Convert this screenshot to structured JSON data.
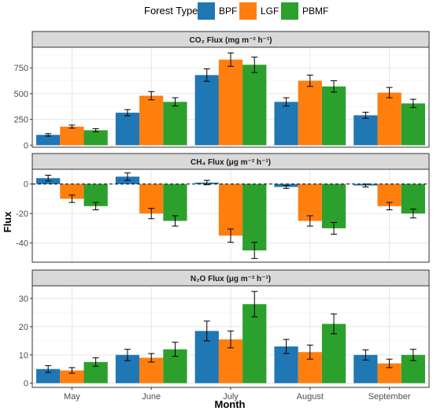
{
  "legend": {
    "title": "Forest Type",
    "items": [
      {
        "label": "BPF",
        "color": "#1f77b4"
      },
      {
        "label": "LGF",
        "color": "#ff7f0e"
      },
      {
        "label": "PBMF",
        "color": "#2ca02c"
      }
    ]
  },
  "axis": {
    "xlabel": "Month",
    "ylabel": "Flux"
  },
  "chart_data": {
    "type": "bar",
    "categories": [
      "May",
      "June",
      "July",
      "August",
      "September"
    ],
    "legend_position": "top",
    "grid": true,
    "error_bars": true,
    "panels": [
      {
        "title": "CO₂ Flux (mg m⁻² h⁻¹)",
        "ylim": [
          -20,
          950
        ],
        "yticks": [
          0,
          250,
          500,
          750
        ],
        "series": [
          {
            "name": "BPF",
            "values": [
              100,
              315,
              680,
              420,
              290
            ],
            "errors": [
              12,
              30,
              60,
              40,
              30
            ]
          },
          {
            "name": "LGF",
            "values": [
              180,
              480,
              830,
              625,
              510
            ],
            "errors": [
              15,
              40,
              65,
              55,
              50
            ]
          },
          {
            "name": "PBMF",
            "values": [
              145,
              420,
              780,
              570,
              405
            ],
            "errors": [
              15,
              40,
              75,
              55,
              40
            ]
          }
        ]
      },
      {
        "title": "CH₄ Flux (μg m⁻² h⁻¹)",
        "ylim": [
          -53,
          10
        ],
        "yticks": [
          -40,
          -20,
          0
        ],
        "reference_line": 0,
        "series": [
          {
            "name": "BPF",
            "values": [
              4,
              5,
              1,
              -2,
              -1
            ],
            "errors": [
              2,
              2.5,
              1.5,
              1,
              1
            ]
          },
          {
            "name": "LGF",
            "values": [
              -10,
              -20,
              -35,
              -25,
              -15
            ],
            "errors": [
              2.5,
              3.5,
              4.5,
              3.5,
              2.5
            ]
          },
          {
            "name": "PBMF",
            "values": [
              -15,
              -25,
              -45,
              -30,
              -20
            ],
            "errors": [
              2.5,
              3.5,
              5.5,
              4,
              3
            ]
          }
        ]
      },
      {
        "title": "N₂O Flux (μg m⁻² h⁻¹)",
        "ylim": [
          -1.5,
          34.5
        ],
        "yticks": [
          0,
          10,
          20,
          30
        ],
        "series": [
          {
            "name": "BPF",
            "values": [
              5,
              10,
              18.5,
              13,
              10
            ],
            "errors": [
              1.2,
              2,
              3.5,
              2.5,
              1.8
            ]
          },
          {
            "name": "LGF",
            "values": [
              4.5,
              9,
              15.5,
              11,
              7
            ],
            "errors": [
              1,
              1.5,
              3,
              2.5,
              1.5
            ]
          },
          {
            "name": "PBMF",
            "values": [
              7.5,
              12,
              28,
              21,
              10
            ],
            "errors": [
              1.5,
              2.5,
              4.5,
              3.5,
              2
            ]
          }
        ]
      }
    ]
  }
}
